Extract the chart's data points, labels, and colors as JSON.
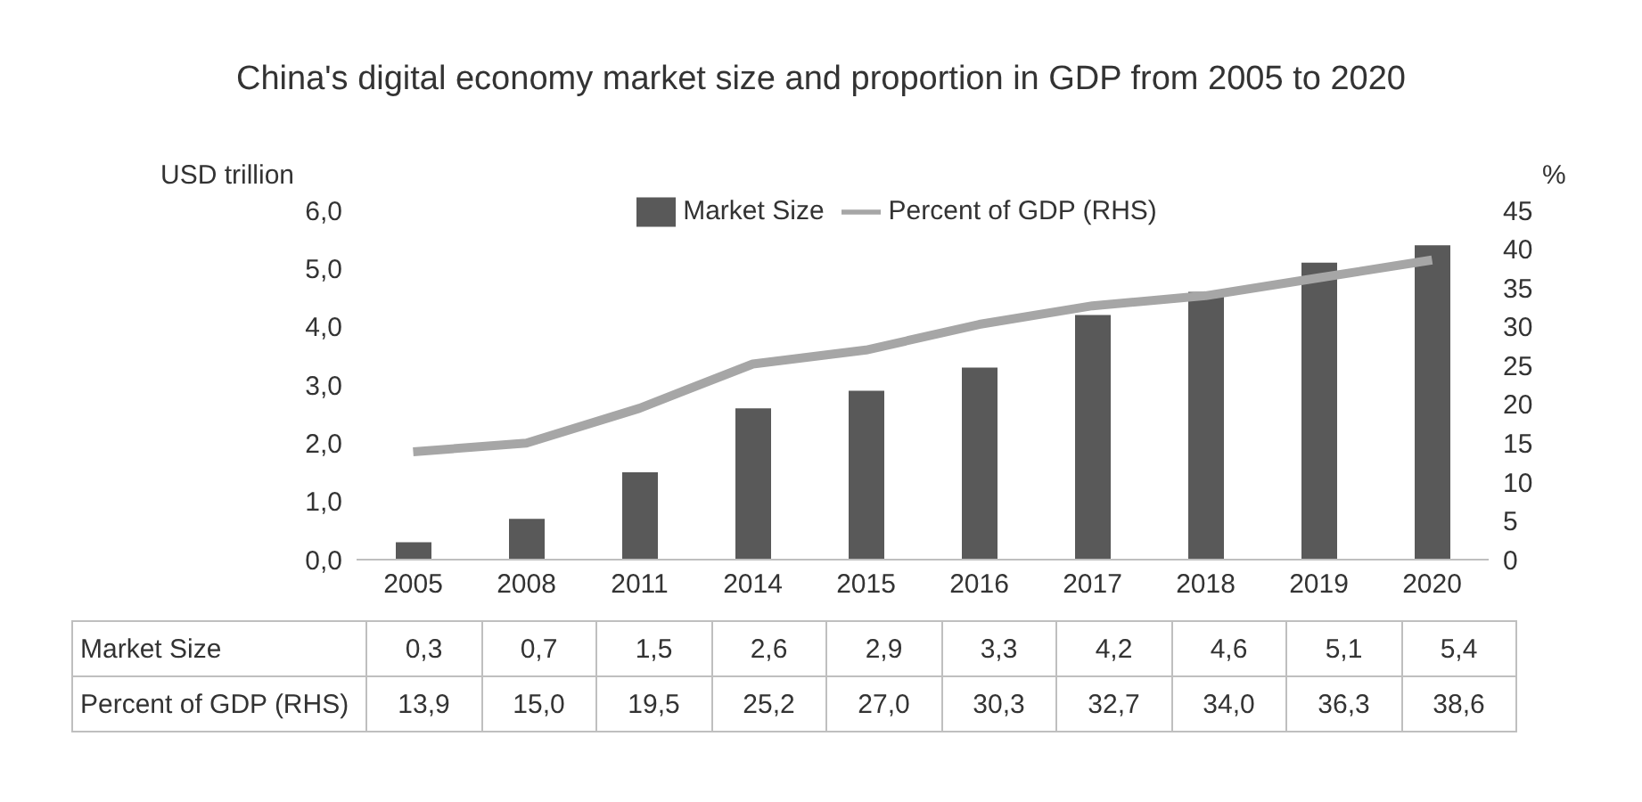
{
  "chart_data": {
    "type": "bar",
    "title": "China's digital economy market size and proportion in GDP from 2005 to 2020",
    "ylabel": "USD trillion",
    "y2label": "%",
    "categories": [
      "2005",
      "2008",
      "2011",
      "2014",
      "2015",
      "2016",
      "2017",
      "2018",
      "2019",
      "2020"
    ],
    "series": [
      {
        "name": "Market Size",
        "color": "#595959",
        "values": [
          0.3,
          0.7,
          1.5,
          2.6,
          2.9,
          3.3,
          4.2,
          4.6,
          5.1,
          5.4
        ],
        "value_labels": [
          "0,3",
          "0,7",
          "1,5",
          "2,6",
          "2,9",
          "3,3",
          "4,2",
          "4,6",
          "5,1",
          "5,4"
        ]
      },
      {
        "name": "Percent of GDP (RHS)",
        "type": "line",
        "axis": "y2",
        "color": "#a6a6a6",
        "marker": "none",
        "values": [
          13.9,
          15.0,
          19.5,
          25.2,
          27.0,
          30.3,
          32.7,
          34.0,
          36.3,
          38.6
        ],
        "value_labels": [
          "13,9",
          "15,0",
          "19,5",
          "25,2",
          "27,0",
          "30,3",
          "32,7",
          "34,0",
          "36,3",
          "38,6"
        ]
      }
    ],
    "ylim": [
      0,
      6
    ],
    "yticks": [
      {
        "value": 0,
        "label": "0,0"
      },
      {
        "value": 1,
        "label": "1,0"
      },
      {
        "value": 2,
        "label": "2,0"
      },
      {
        "value": 3,
        "label": "3,0"
      },
      {
        "value": 4,
        "label": "4,0"
      },
      {
        "value": 5,
        "label": "5,0"
      },
      {
        "value": 6,
        "label": "6,0"
      }
    ],
    "y2lim": [
      0,
      45
    ],
    "y2ticks": [
      0,
      5,
      10,
      15,
      20,
      25,
      30,
      35,
      40,
      45
    ],
    "legend": "top",
    "grid": false
  }
}
